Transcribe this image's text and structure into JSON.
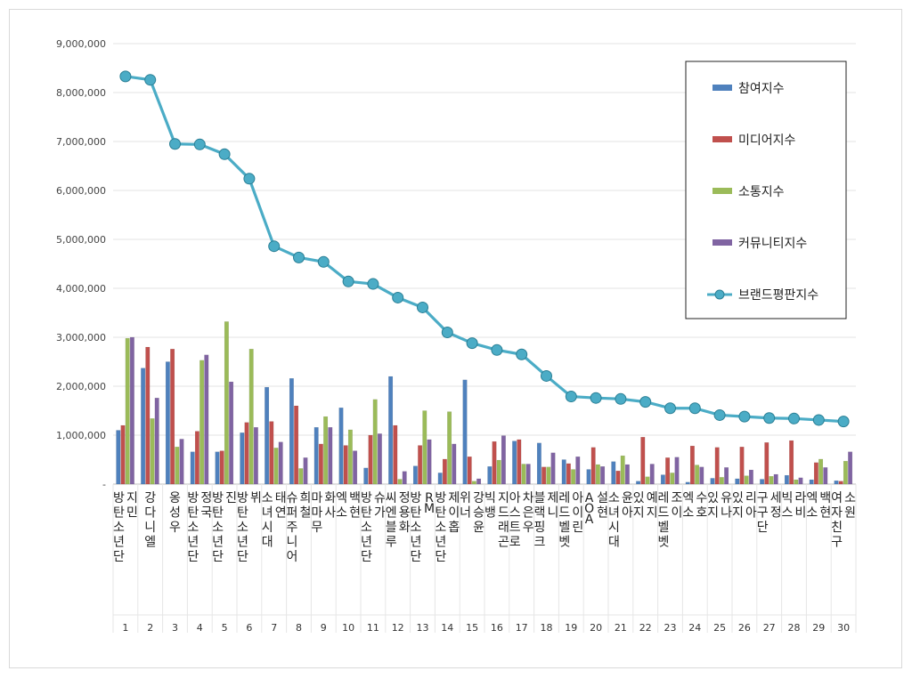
{
  "chart_data": {
    "type": "bar",
    "y_ticks": [
      "-",
      "1,000,000",
      "2,000,000",
      "3,000,000",
      "4,000,000",
      "5,000,000",
      "6,000,000",
      "7,000,000",
      "8,000,000",
      "9,000,000"
    ],
    "ylim": [
      0,
      9000000
    ],
    "grid": true,
    "legend_position": "top-right",
    "categories": [
      "방탄소년단 지민",
      "강다니엘",
      "옹성우",
      "방탄소년단 정국",
      "방탄소년단 진",
      "방탄소년단 뷔",
      "소녀시대 태연",
      "슈퍼주니어 희철",
      "마마무 화사",
      "엑소 백현",
      "방탄소년단 슈가",
      "씨엔블루 정용화",
      "방탄소년단 RM",
      "방탄소년단 제이홉",
      "위너 강승윤",
      "빅뱅 지드래곤",
      "아스트로 차은우",
      "블랙핑크 제니",
      "레드벨벳 아이린",
      "AOA 설현",
      "소녀시대 윤아",
      "있지 예지",
      "레드벨벳 조이",
      "엑소 수호",
      "있지 유나",
      "있지 리아",
      "구구단 세정",
      "빅스 라비",
      "엑소 백현",
      "여자친구 소원"
    ],
    "ranks": [
      "1",
      "2",
      "3",
      "4",
      "5",
      "6",
      "7",
      "8",
      "9",
      "10",
      "11",
      "12",
      "13",
      "14",
      "15",
      "16",
      "17",
      "18",
      "19",
      "20",
      "21",
      "22",
      "23",
      "24",
      "25",
      "26",
      "27",
      "28",
      "29",
      "30"
    ],
    "series": [
      {
        "name": "참여지수",
        "kind": "bar",
        "color": "#4f81bd",
        "values": [
          1100000,
          2370000,
          2500000,
          660000,
          660000,
          1050000,
          1980000,
          2160000,
          1160000,
          1560000,
          330000,
          2200000,
          370000,
          230000,
          2130000,
          360000,
          880000,
          840000,
          500000,
          300000,
          460000,
          60000,
          190000,
          40000,
          120000,
          110000,
          100000,
          180000,
          90000,
          70000
        ]
      },
      {
        "name": "미디어지수",
        "kind": "bar",
        "color": "#c0504d",
        "values": [
          1200000,
          2800000,
          2760000,
          1080000,
          680000,
          1260000,
          1280000,
          1600000,
          820000,
          790000,
          1000000,
          1200000,
          790000,
          510000,
          560000,
          870000,
          910000,
          350000,
          420000,
          750000,
          270000,
          960000,
          540000,
          780000,
          750000,
          760000,
          850000,
          890000,
          440000,
          60000
        ]
      },
      {
        "name": "소통지수",
        "kind": "bar",
        "color": "#9bbb59",
        "values": [
          2980000,
          1340000,
          760000,
          2530000,
          3320000,
          2760000,
          740000,
          320000,
          1380000,
          1110000,
          1730000,
          100000,
          1500000,
          1480000,
          60000,
          490000,
          410000,
          350000,
          300000,
          400000,
          580000,
          150000,
          230000,
          390000,
          140000,
          170000,
          160000,
          90000,
          510000,
          470000
        ]
      },
      {
        "name": "커뮤니티지수",
        "kind": "bar",
        "color": "#8064a2",
        "values": [
          3000000,
          1760000,
          920000,
          2640000,
          2090000,
          1160000,
          860000,
          540000,
          1160000,
          680000,
          1030000,
          260000,
          910000,
          820000,
          110000,
          990000,
          410000,
          640000,
          560000,
          360000,
          400000,
          410000,
          550000,
          350000,
          340000,
          290000,
          200000,
          130000,
          340000,
          660000
        ]
      },
      {
        "name": "브랜드평판지수",
        "kind": "line",
        "color": "#4bacc6",
        "values": [
          8330000,
          8260000,
          6950000,
          6940000,
          6740000,
          6240000,
          4860000,
          4630000,
          4540000,
          4140000,
          4090000,
          3810000,
          3610000,
          3100000,
          2880000,
          2740000,
          2650000,
          2210000,
          1790000,
          1760000,
          1740000,
          1680000,
          1550000,
          1550000,
          1410000,
          1380000,
          1350000,
          1340000,
          1310000,
          1280000
        ]
      }
    ]
  }
}
